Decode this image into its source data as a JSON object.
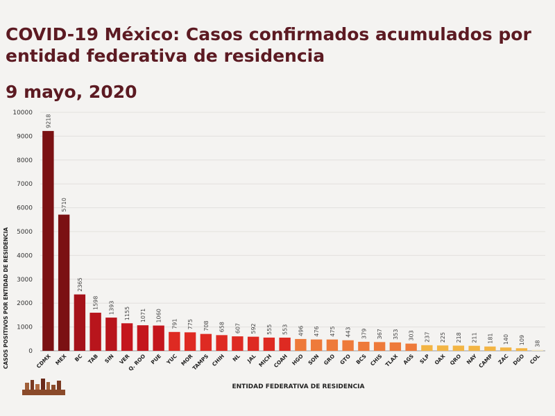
{
  "header": {
    "title": "COVID-19 México: Casos confirmados acumulados por entidad federativa de residencia",
    "date": "9 mayo, 2020"
  },
  "chart_data": {
    "type": "bar",
    "categories": [
      "CDMX",
      "MEX",
      "BC",
      "TAB",
      "SIN",
      "VER",
      "Q. ROO",
      "PUE",
      "YUC",
      "MOR",
      "TAMPS",
      "CHIH",
      "NL",
      "JAL",
      "MICH",
      "COAH",
      "HGO",
      "SON",
      "GRO",
      "GTO",
      "BCS",
      "CHIS",
      "TLAX",
      "AGS",
      "SLP",
      "OAX",
      "QRO",
      "NAY",
      "CAMP",
      "ZAC",
      "DGO",
      "COL"
    ],
    "values": [
      9218,
      5710,
      2365,
      1598,
      1393,
      1155,
      1071,
      1060,
      791,
      775,
      708,
      658,
      607,
      592,
      555,
      553,
      496,
      476,
      475,
      443,
      379,
      367,
      353,
      303,
      237,
      225,
      218,
      211,
      181,
      140,
      109,
      38
    ],
    "data_labels": [
      "9218",
      "5710",
      "2365",
      "1598",
      "1393",
      "1155",
      "1071",
      "1060",
      "791",
      "775",
      "708",
      "658",
      "607",
      "592",
      "555",
      "553",
      "496",
      "476",
      "475",
      "443",
      "379",
      "367",
      "353",
      "303",
      "237",
      "225",
      "218",
      "211",
      "181",
      "140",
      "109",
      "38"
    ],
    "ylim": [
      0,
      10000
    ],
    "yticks": [
      "0",
      "1000",
      "2000",
      "3000",
      "4000",
      "5000",
      "6000",
      "7000",
      "8000",
      "9000",
      "10000"
    ],
    "xlabel": "ENTIDAD FEDERATIVA DE RESIDENCIA",
    "ylabel": "CASOS POSITIVOS POR ENTIDAD DE RESIDENCIA",
    "grid": true,
    "colors": [
      "#7b1113",
      "#7b1113",
      "#a5121a",
      "#b8151c",
      "#b8151c",
      "#c4161d",
      "#c4161d",
      "#c4161d",
      "#de2a22",
      "#de2a22",
      "#de2a22",
      "#de2a22",
      "#de2a22",
      "#de2a22",
      "#de2a22",
      "#de2a22",
      "#ee7a3a",
      "#ee7a3a",
      "#ee7a3a",
      "#ee7a3a",
      "#ee7a3a",
      "#ee7a3a",
      "#ee7a3a",
      "#ee7a3a",
      "#f3b544",
      "#f3b544",
      "#f3b544",
      "#f3b544",
      "#f3b544",
      "#f3b544",
      "#f3b544",
      "#f5e6b9"
    ]
  },
  "decor": {
    "logo": "gobierno-de-mexico-emblem"
  }
}
